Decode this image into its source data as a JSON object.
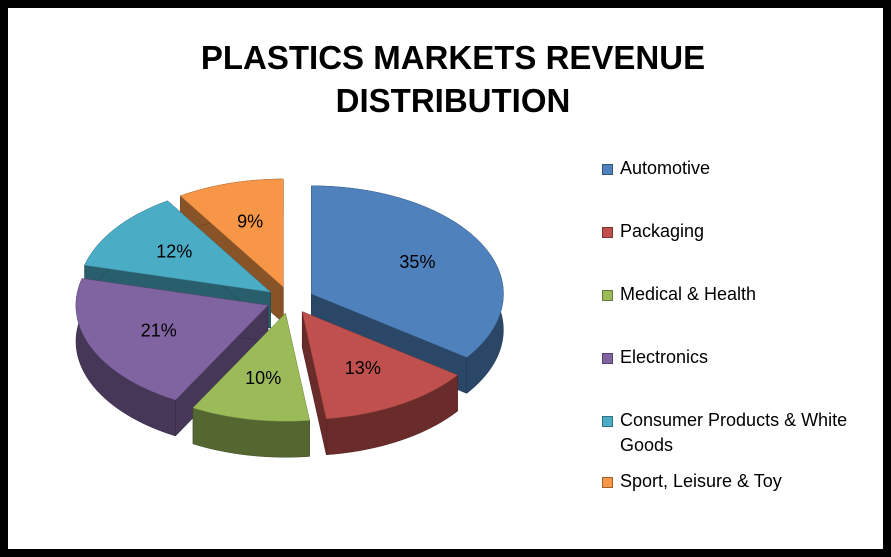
{
  "chart_data": {
    "type": "pie",
    "title": "PLASTICS MARKETS REVENUE DISTRIBUTION",
    "categories": [
      "Automotive",
      "Packaging",
      "Medical & Health",
      "Electronics",
      "Consumer Products & White Goods",
      "Sport, Leisure & Toy"
    ],
    "values": [
      35,
      13,
      10,
      21,
      12,
      9
    ],
    "value_labels": [
      "35%",
      "13%",
      "10%",
      "21%",
      "12%",
      "9%"
    ],
    "colors": [
      "#4f81bd",
      "#c0504d",
      "#9bbb59",
      "#8064a2",
      "#4bacc6",
      "#f79646"
    ],
    "legend": "right"
  }
}
